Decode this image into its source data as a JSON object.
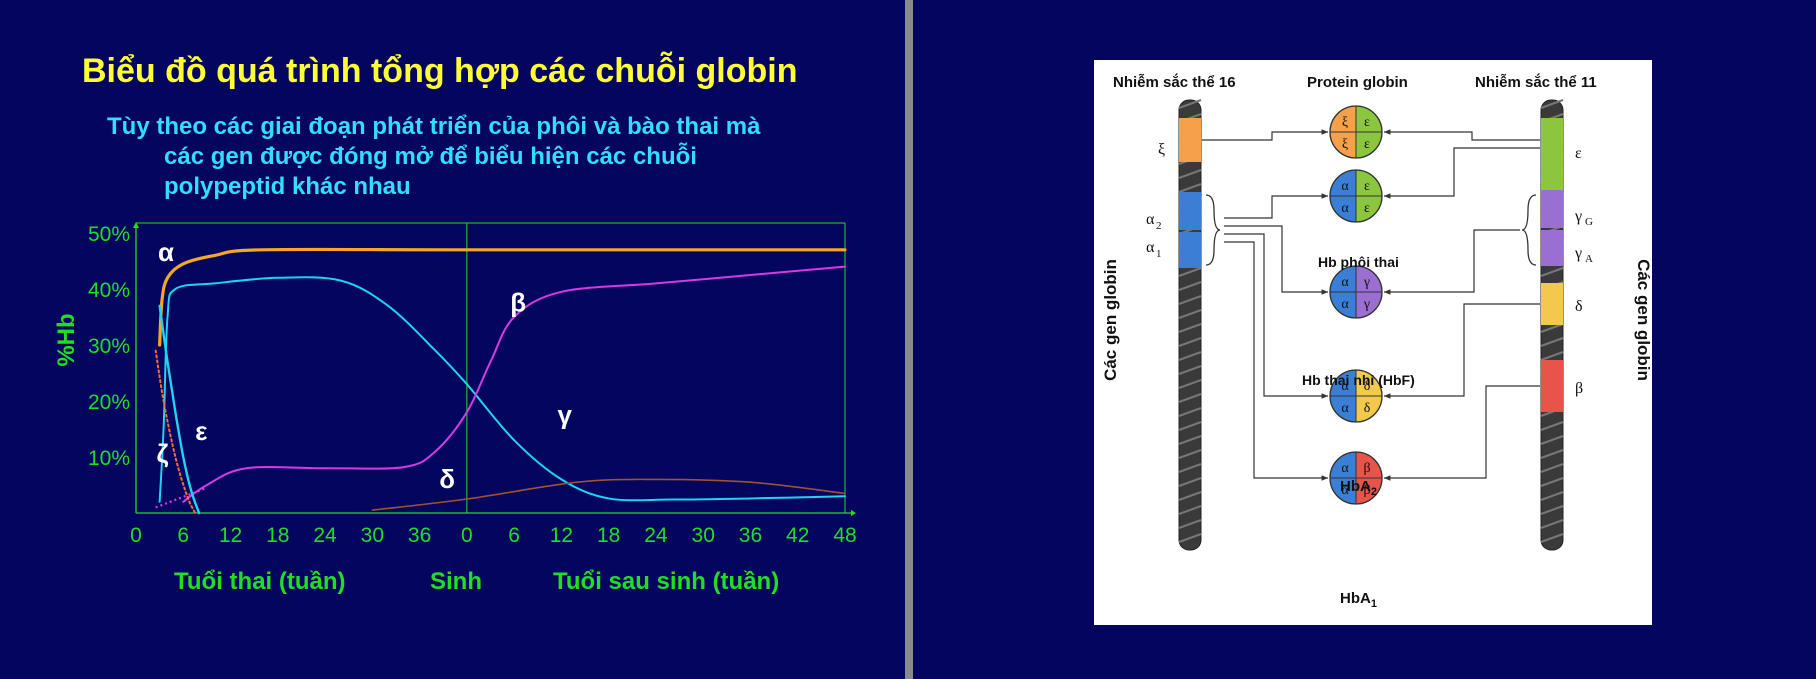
{
  "title": "Biểu đồ quá trình tổng hợp các chuỗi globin",
  "subtitle_lines": [
    "Tùy theo các giai đoạn phát triển của phôi và bào thai mà",
    "các gen được đóng mở để biểu hiện các chuỗi",
    "polypeptid khác nhau"
  ],
  "colors": {
    "background": "#03055e",
    "title": "#ffff33",
    "subtitle": "#33ddff",
    "axis": "#22dd22",
    "alpha": "#f5a623",
    "gamma": "#22d3ee",
    "beta": "#d63be0",
    "epsilon": "#22d3ee",
    "zeta": "#ff6a3d",
    "delta": "#a0522d"
  },
  "chart_data": {
    "type": "line",
    "ylabel": "%Hb",
    "y_ticks": [
      "50%",
      "40%",
      "30%",
      "20%",
      "10%"
    ],
    "y_tick_values": [
      50,
      40,
      30,
      20,
      10
    ],
    "ylim": [
      0,
      50
    ],
    "x_ticks": [
      "0",
      "6",
      "12",
      "18",
      "24",
      "30",
      "36",
      "0",
      "6",
      "12",
      "18",
      "24",
      "30",
      "36",
      "42",
      "48"
    ],
    "x_sections": [
      {
        "label": "Tuổi thai (tuần)",
        "range": [
          0,
          42
        ]
      },
      {
        "label": "Sinh",
        "at": 42
      },
      {
        "label": "Tuổi sau sinh (tuần)",
        "range": [
          0,
          48
        ]
      }
    ],
    "xlim": [
      0,
      90
    ],
    "series": [
      {
        "name": "α",
        "points": [
          [
            3,
            30
          ],
          [
            3.3,
            38
          ],
          [
            4,
            42
          ],
          [
            6,
            44.5
          ],
          [
            10,
            46
          ],
          [
            16,
            47
          ],
          [
            42,
            47
          ],
          [
            90,
            47
          ]
        ]
      },
      {
        "name": "γ",
        "points": [
          [
            3,
            2
          ],
          [
            3.5,
            15
          ],
          [
            4,
            35
          ],
          [
            5,
            40
          ],
          [
            10,
            41
          ],
          [
            18,
            42
          ],
          [
            26,
            41.5
          ],
          [
            32,
            37
          ],
          [
            38,
            29
          ],
          [
            42,
            23
          ],
          [
            48,
            13
          ],
          [
            54,
            6
          ],
          [
            60,
            2.6
          ],
          [
            68,
            2.4
          ],
          [
            78,
            2.6
          ],
          [
            90,
            3
          ]
        ]
      },
      {
        "name": "β",
        "points": [
          [
            6,
            2
          ],
          [
            9,
            5
          ],
          [
            14,
            8
          ],
          [
            24,
            8
          ],
          [
            34,
            8.2
          ],
          [
            38,
            11
          ],
          [
            42,
            18
          ],
          [
            45,
            27
          ],
          [
            48,
            35
          ],
          [
            54,
            39.5
          ],
          [
            66,
            41
          ],
          [
            78,
            42.5
          ],
          [
            90,
            44
          ]
        ]
      },
      {
        "name": "ε",
        "points": [
          [
            3,
            37
          ],
          [
            4,
            27
          ],
          [
            5,
            18
          ],
          [
            6,
            10
          ],
          [
            7,
            4
          ],
          [
            8,
            0
          ]
        ]
      },
      {
        "name": "ζ",
        "points": [
          [
            2.5,
            29
          ],
          [
            3.5,
            20
          ],
          [
            5,
            10
          ],
          [
            6.5,
            3
          ],
          [
            7.5,
            0
          ]
        ]
      },
      {
        "name": "δ",
        "points": [
          [
            30,
            0.5
          ],
          [
            42,
            2.5
          ],
          [
            56,
            5.5
          ],
          [
            66,
            6
          ],
          [
            78,
            5.5
          ],
          [
            90,
            3.5
          ]
        ]
      }
    ],
    "series_labels": [
      {
        "text": "α",
        "x": 2.8,
        "y": 45
      },
      {
        "text": "β",
        "x": 47.5,
        "y": 36
      },
      {
        "text": "γ",
        "x": 53.5,
        "y": 16
      },
      {
        "text": "ε",
        "x": 7.5,
        "y": 13
      },
      {
        "text": "ζ",
        "x": 2.6,
        "y": 9
      },
      {
        "text": "δ",
        "x": 38.5,
        "y": 4.5
      }
    ],
    "grid": false
  },
  "diagram": {
    "header_left": "Nhiễm sắc thể 16",
    "header_mid": "Protein globin",
    "header_right": "Nhiễm sắc thể 11",
    "side_left": "Các gen globin",
    "side_right": "Các gen globin",
    "chr16_genes": [
      "ξ",
      "α",
      "2",
      "α",
      "1"
    ],
    "chr11_genes": [
      "ε",
      "γ",
      "G",
      "γ",
      "A",
      "δ",
      "β"
    ],
    "hb_labels": {
      "embryo": "Hb phôi thai",
      "fetal": "Hb thai nhi (HbF)",
      "hba2": "HbA",
      "hba2_sub": "2",
      "hba1": "HbA",
      "hba1_sub": "1"
    },
    "molecules": [
      {
        "name": "xi-epsilon",
        "letters": [
          "ξ",
          "ε",
          "ξ",
          "ε"
        ],
        "colors": [
          "#f5a04a",
          "#8cc63f",
          "#f5a04a",
          "#8cc63f"
        ]
      },
      {
        "name": "alpha-epsilon",
        "letters": [
          "α",
          "ε",
          "α",
          "ε"
        ],
        "colors": [
          "#3a7fd5",
          "#8cc63f",
          "#3a7fd5",
          "#8cc63f"
        ]
      },
      {
        "name": "alpha-gamma",
        "letters": [
          "α",
          "γ",
          "α",
          "γ"
        ],
        "colors": [
          "#3a7fd5",
          "#9b6fd1",
          "#3a7fd5",
          "#9b6fd1"
        ]
      },
      {
        "name": "alpha-delta",
        "letters": [
          "α",
          "δ",
          "α",
          "δ"
        ],
        "colors": [
          "#3a7fd5",
          "#f2c94c",
          "#3a7fd5",
          "#f2c94c"
        ]
      },
      {
        "name": "alpha-beta",
        "letters": [
          "α",
          "β",
          "α",
          "β"
        ],
        "colors": [
          "#3a7fd5",
          "#e8534a",
          "#3a7fd5",
          "#e8534a"
        ]
      }
    ]
  }
}
